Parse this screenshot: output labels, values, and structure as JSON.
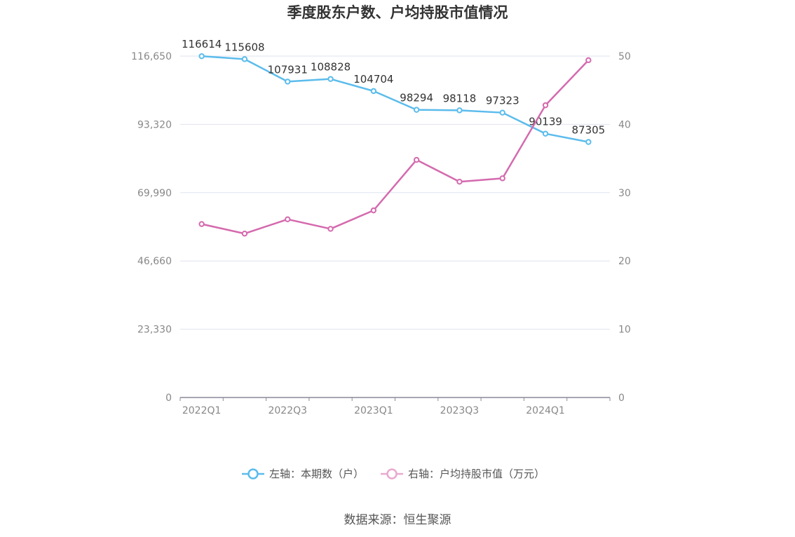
{
  "source": "数据来源：恒生聚源",
  "chart_data": {
    "type": "line",
    "title": "季度股东户数、户均持股市值情况",
    "x": [
      "2022Q1",
      "2022Q2",
      "2022Q3",
      "2022Q4",
      "2023Q1",
      "2023Q2",
      "2023Q3",
      "2023Q4",
      "2024Q1",
      "2024Q2"
    ],
    "x_tick_labels": [
      "2022Q1",
      "2022Q3",
      "2023Q1",
      "2023Q3",
      "2024Q1"
    ],
    "y_left": {
      "min": 0,
      "max": 116650,
      "ticks": [
        0,
        23330,
        46660,
        69990,
        93320,
        116650
      ],
      "tick_labels": [
        "0",
        "23,330",
        "46,660",
        "69,990",
        "93,320",
        "116,650"
      ]
    },
    "y_right": {
      "min": 0,
      "max": 50,
      "ticks": [
        0,
        10,
        20,
        30,
        40,
        50
      ],
      "tick_labels": [
        "0",
        "10",
        "20",
        "30",
        "40",
        "50"
      ]
    },
    "grid": true,
    "legend_position": "bottom",
    "series": [
      {
        "name": "左轴：本期数（户）",
        "axis": "left",
        "color": "#5bbcec",
        "values": [
          116614,
          115608,
          107931,
          108828,
          104704,
          98294,
          98118,
          97323,
          90139,
          87305
        ],
        "labels": [
          "116614",
          "115608",
          "107931",
          "108828",
          "104704",
          "98294",
          "98118",
          "97323",
          "90139",
          "87305"
        ]
      },
      {
        "name": "右轴：户均持股市值（万元）",
        "axis": "right",
        "color": "#d46aae",
        "values": [
          25.4,
          24.0,
          26.1,
          24.7,
          27.4,
          34.8,
          31.6,
          32.1,
          42.8,
          49.4
        ]
      }
    ]
  }
}
